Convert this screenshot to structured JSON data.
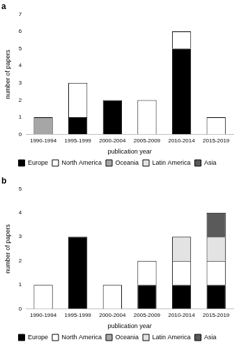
{
  "chart_data": [
    {
      "type": "bar",
      "title": "a",
      "categories": [
        "1990-1994",
        "1995-1999",
        "2000-2004",
        "2005-2009",
        "2010-2014",
        "2015-2019"
      ],
      "series": [
        {
          "name": "Europe",
          "color": "#000000",
          "values": [
            0,
            1,
            2,
            0,
            5,
            0
          ]
        },
        {
          "name": "North America",
          "color": "#ffffff",
          "values": [
            0,
            2,
            0,
            2,
            1,
            1
          ]
        },
        {
          "name": "Oceania",
          "color": "#a6a6a6",
          "values": [
            1,
            0,
            0,
            0,
            0,
            0
          ]
        },
        {
          "name": "Latin America",
          "color": "#e3e3e3",
          "values": [
            0,
            0,
            0,
            0,
            0,
            0
          ]
        },
        {
          "name": "Asia",
          "color": "#5a5a5a",
          "values": [
            0,
            0,
            0,
            0,
            0,
            0
          ]
        }
      ],
      "xlabel": "publication year",
      "ylabel": "number of papers",
      "ylim": [
        0,
        7
      ],
      "yticks": [
        0,
        1,
        2,
        3,
        4,
        5,
        6,
        7
      ],
      "stacked": true,
      "grid": false,
      "legend": "bottom"
    },
    {
      "type": "bar",
      "title": "b",
      "categories": [
        "1990-1994",
        "1995-1999",
        "2000-2004",
        "2005-2009",
        "2010-2014",
        "2015-2019"
      ],
      "series": [
        {
          "name": "Europe",
          "color": "#000000",
          "values": [
            0,
            3,
            0,
            1,
            1,
            1
          ]
        },
        {
          "name": "North America",
          "color": "#ffffff",
          "values": [
            1,
            0,
            1,
            1,
            1,
            1
          ]
        },
        {
          "name": "Oceania",
          "color": "#a6a6a6",
          "values": [
            0,
            0,
            0,
            0,
            0,
            0
          ]
        },
        {
          "name": "Latin America",
          "color": "#e3e3e3",
          "values": [
            0,
            0,
            0,
            0,
            1,
            1
          ]
        },
        {
          "name": "Asia",
          "color": "#5a5a5a",
          "values": [
            0,
            0,
            0,
            0,
            0,
            1
          ]
        }
      ],
      "xlabel": "publication year",
      "ylabel": "number of papers",
      "ylim": [
        0,
        5
      ],
      "yticks": [
        0,
        1,
        2,
        3,
        4,
        5
      ],
      "stacked": true,
      "grid": false,
      "legend": "bottom"
    }
  ]
}
